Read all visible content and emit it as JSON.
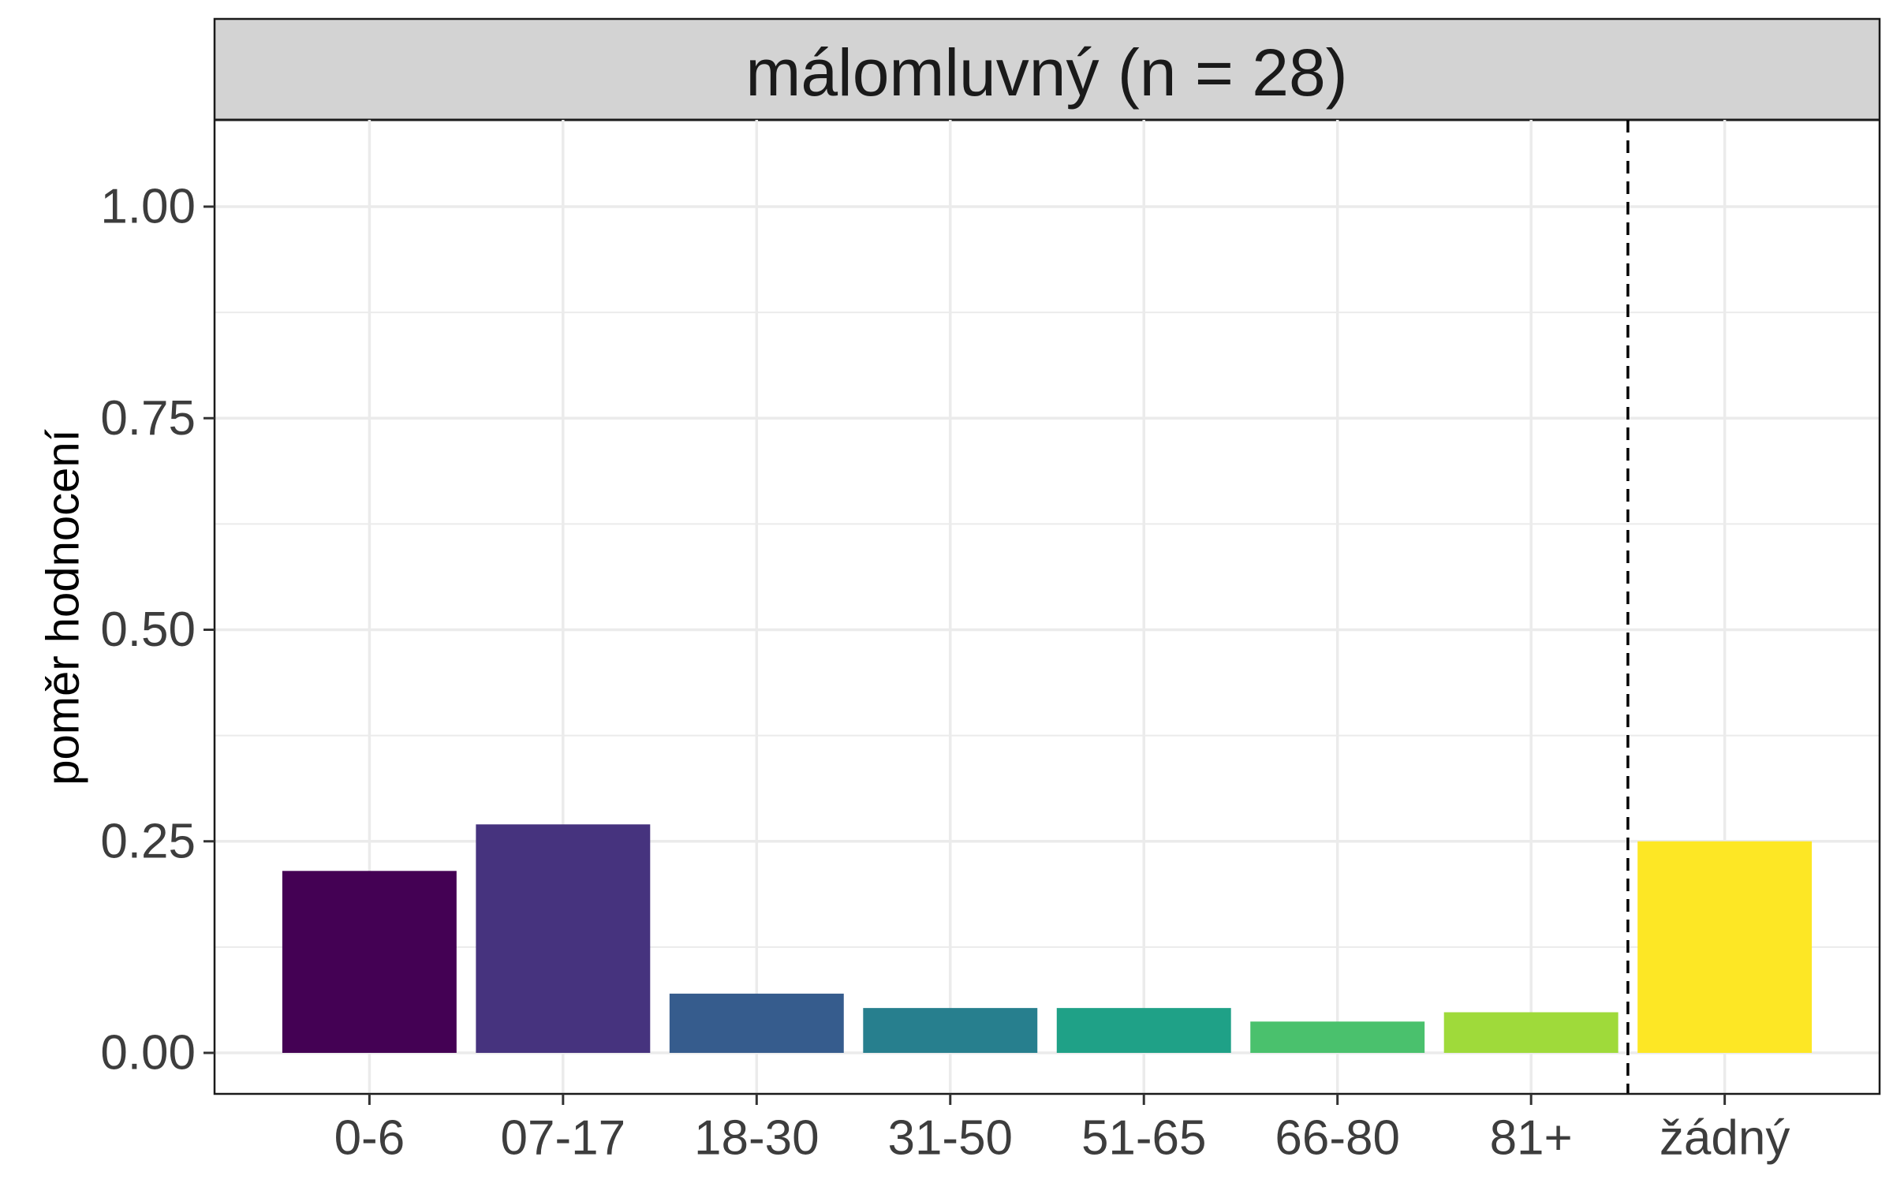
{
  "chart_data": {
    "type": "bar",
    "title": "málomluvný (n = 28)",
    "xlabel": "",
    "ylabel": "poměr hodnocení",
    "categories": [
      "0-6",
      "07-17",
      "18-30",
      "31-50",
      "51-65",
      "66-80",
      "81+",
      "žádný"
    ],
    "values": [
      0.215,
      0.27,
      0.07,
      0.053,
      0.053,
      0.037,
      0.048,
      0.25
    ],
    "colors": [
      "#440154",
      "#46337E",
      "#365C8D",
      "#277F8E",
      "#1FA187",
      "#4AC16D",
      "#9FDA3A",
      "#FDE725"
    ],
    "ylim": [
      0,
      1.1
    ],
    "yticks": [
      "0.00",
      "0.25",
      "0.50",
      "0.75",
      "1.00"
    ],
    "ytick_values": [
      0,
      0.25,
      0.5,
      0.75,
      1.0
    ],
    "grid": true,
    "reference_line": {
      "style": "dashed",
      "between": [
        "81+",
        "žádný"
      ]
    },
    "strip_color": "#D3D3D3",
    "grid_color": "#EBEBEB"
  }
}
